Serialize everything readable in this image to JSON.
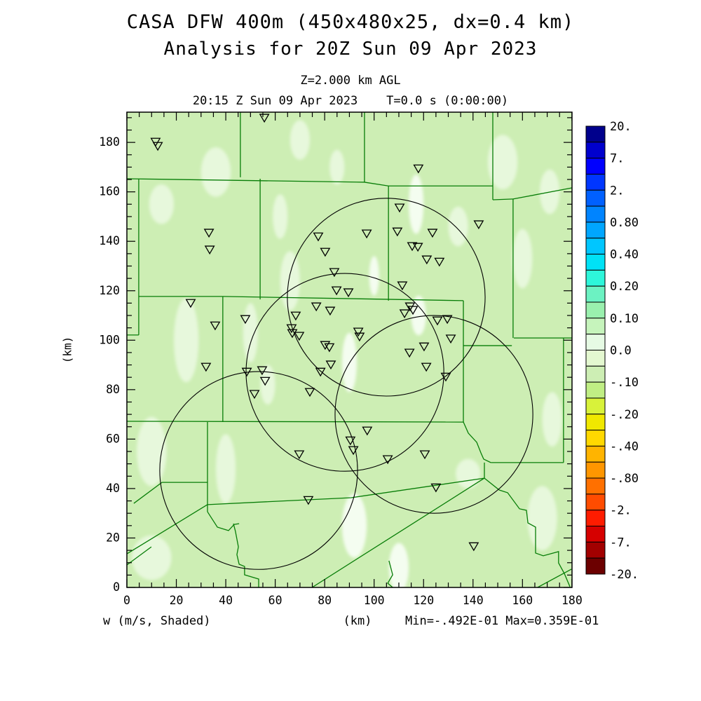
{
  "header": {
    "title_line1": "CASA DFW 400m (450x480x25, dx=0.4 km)",
    "title_line2": "Analysis for 20Z Sun 09 Apr 2023",
    "level_label": "Z=2.000 km AGL",
    "time_label": "20:15 Z Sun 09 Apr 2023    T=0.0 s (0:00:00)"
  },
  "footer": {
    "field_label": "w (m/s, Shaded)",
    "axis_unit": "(km)",
    "minmax_label": "Min=-.492E-01 Max=0.359E-01"
  },
  "chart_data": {
    "type": "map-contour",
    "title": "CASA DFW 400m (450x480x25, dx=0.4 km)",
    "subtitle": "Analysis for 20Z Sun 09 Apr 2023",
    "field_name": "w",
    "field_units": "m/s, Shaded",
    "level": "Z=2.000 km AGL",
    "valid_time": "20:15 Z Sun 09 Apr 2023",
    "forecast_time": "T=0.0 s (0:00:00)",
    "field_min": "-.492E-01",
    "field_max": "0.359E-01",
    "x_axis": {
      "label": "(km)",
      "min": 0,
      "max": 180,
      "major_tick": 20,
      "minor_tick": 5,
      "tick_labels": [
        "0",
        "20",
        "40",
        "60",
        "80",
        "100",
        "120",
        "140",
        "160",
        "180"
      ]
    },
    "y_axis": {
      "label": "(km)",
      "min": 0,
      "max": 192.2,
      "major_tick": 20,
      "minor_tick": 5,
      "tick_labels": [
        "0",
        "20",
        "40",
        "60",
        "80",
        "100",
        "120",
        "140",
        "160",
        "180"
      ]
    },
    "colorbar": {
      "boundary_labels": [
        {
          "label": "20.",
          "boundary": 0
        },
        {
          "label": "7.",
          "boundary": 2
        },
        {
          "label": "2.",
          "boundary": 4
        },
        {
          "label": "0.80",
          "boundary": 6
        },
        {
          "label": "0.40",
          "boundary": 8
        },
        {
          "label": "0.20",
          "boundary": 10
        },
        {
          "label": "0.10",
          "boundary": 12
        },
        {
          "label": "0.0",
          "boundary": 14
        },
        {
          "label": "-.10",
          "boundary": 16
        },
        {
          "label": "-.20",
          "boundary": 18
        },
        {
          "label": "-.40",
          "boundary": 20
        },
        {
          "label": "-.80",
          "boundary": 22
        },
        {
          "label": "-2.",
          "boundary": 24
        },
        {
          "label": "-7.",
          "boundary": 26
        },
        {
          "label": "-20.",
          "boundary": 28
        }
      ],
      "cell_colors": [
        "#00008c",
        "#0000cd",
        "#0000fe",
        "#0036ff",
        "#0060ff",
        "#0084ff",
        "#00a6ff",
        "#00c6ff",
        "#00e2f6",
        "#2ef6da",
        "#6cf2c2",
        "#9af0ae",
        "#c6f4bc",
        "#e6fae4",
        "#e4f8d0",
        "#cdeeb4",
        "#c0ee84",
        "#d8f23a",
        "#f0e800",
        "#ffd800",
        "#ffb400",
        "#ff9600",
        "#ff7000",
        "#ff4c00",
        "#fe1c00",
        "#d60000",
        "#a20000",
        "#6c0000"
      ]
    },
    "colors": {
      "map_background": "#cdeeb4",
      "pale_patch": "#e7f8dc",
      "bright_patch": "#f4fdf0",
      "county_line": "#077d07",
      "range_circle": "#000000",
      "marker": "#000000",
      "frame": "#000000"
    },
    "radar_circles_km": [
      {
        "x": 104.9,
        "y": 117.4,
        "r": 40
      },
      {
        "x": 88.2,
        "y": 87.0,
        "r": 40
      },
      {
        "x": 53.3,
        "y": 47.3,
        "r": 40
      },
      {
        "x": 124.2,
        "y": 70.0,
        "r": 40
      }
    ],
    "stations_km": [
      [
        11.6,
        180.3
      ],
      [
        12.5,
        178.6
      ],
      [
        55.6,
        190.0
      ],
      [
        33.2,
        143.5
      ],
      [
        33.5,
        136.7
      ],
      [
        77.4,
        142.0
      ],
      [
        80.2,
        135.8
      ],
      [
        83.9,
        127.6
      ],
      [
        84.8,
        120.2
      ],
      [
        89.6,
        119.4
      ],
      [
        76.6,
        113.7
      ],
      [
        82.2,
        112.0
      ],
      [
        68.3,
        110.0
      ],
      [
        66.6,
        104.9
      ],
      [
        66.9,
        102.9
      ],
      [
        69.7,
        101.8
      ],
      [
        80.2,
        98.1
      ],
      [
        81.9,
        97.2
      ],
      [
        25.8,
        115.1
      ],
      [
        47.9,
        108.6
      ],
      [
        35.7,
        106.0
      ],
      [
        117.9,
        169.5
      ],
      [
        110.3,
        153.7
      ],
      [
        142.3,
        146.9
      ],
      [
        97.0,
        143.2
      ],
      [
        109.4,
        144.0
      ],
      [
        123.6,
        143.5
      ],
      [
        115.4,
        138.1
      ],
      [
        117.7,
        137.8
      ],
      [
        121.3,
        132.7
      ],
      [
        126.4,
        131.8
      ],
      [
        111.4,
        122.2
      ],
      [
        114.5,
        113.7
      ],
      [
        115.7,
        112.3
      ],
      [
        112.3,
        110.9
      ],
      [
        125.6,
        108.0
      ],
      [
        129.6,
        108.6
      ],
      [
        131.0,
        100.7
      ],
      [
        120.2,
        97.5
      ],
      [
        93.6,
        103.5
      ],
      [
        94.1,
        101.5
      ],
      [
        32.0,
        89.3
      ],
      [
        48.5,
        87.3
      ],
      [
        54.7,
        87.9
      ],
      [
        55.9,
        83.6
      ],
      [
        51.6,
        78.3
      ],
      [
        74.0,
        79.1
      ],
      [
        82.5,
        90.2
      ],
      [
        78.3,
        87.3
      ],
      [
        69.7,
        53.9
      ],
      [
        73.4,
        35.4
      ],
      [
        90.4,
        59.5
      ],
      [
        91.6,
        55.6
      ],
      [
        97.2,
        63.5
      ],
      [
        105.5,
        51.9
      ],
      [
        120.5,
        53.9
      ],
      [
        125.0,
        40.5
      ],
      [
        140.3,
        16.7
      ],
      [
        114.3,
        95.0
      ],
      [
        121.1,
        89.3
      ],
      [
        129.0,
        85.3
      ]
    ],
    "county_lines_km": [
      [
        [
          45.9,
          192.2
        ],
        [
          45.9,
          165.9
        ]
      ],
      [
        [
          0,
          165.3
        ],
        [
          96.1,
          163.9
        ]
      ],
      [
        [
          96.1,
          192.2
        ],
        [
          96.1,
          163.9
        ]
      ],
      [
        [
          96.1,
          163.9
        ],
        [
          105.8,
          162.4
        ],
        [
          148.0,
          162.4
        ]
      ],
      [
        [
          148.0,
          192.2
        ],
        [
          148.0,
          156.8
        ]
      ],
      [
        [
          148.0,
          156.8
        ],
        [
          156.2,
          157.1
        ]
      ],
      [
        [
          156.2,
          157.1
        ],
        [
          180.0,
          161.6
        ]
      ],
      [
        [
          156.2,
          157.1
        ],
        [
          156.2,
          100.9
        ]
      ],
      [
        [
          4.8,
          165.3
        ],
        [
          4.8,
          102.1
        ]
      ],
      [
        [
          0,
          102.1
        ],
        [
          4.8,
          102.1
        ]
      ],
      [
        [
          53.9,
          165.3
        ],
        [
          53.9,
          116.5
        ]
      ],
      [
        [
          4.8,
          117.7
        ],
        [
          38.8,
          117.7
        ]
      ],
      [
        [
          38.8,
          117.7
        ],
        [
          136.1,
          116.0
        ]
      ],
      [
        [
          38.8,
          117.7
        ],
        [
          38.8,
          66.9
        ]
      ],
      [
        [
          105.8,
          162.4
        ],
        [
          105.8,
          116.0
        ]
      ],
      [
        [
          136.1,
          116.0
        ],
        [
          136.1,
          66.9
        ]
      ],
      [
        [
          136.1,
          97.8
        ],
        [
          155.7,
          97.8
        ]
      ],
      [
        [
          156.5,
          100.9
        ],
        [
          180.0,
          100.9
        ]
      ],
      [
        [
          176.6,
          100.9
        ],
        [
          176.6,
          50.5
        ]
      ],
      [
        [
          147.2,
          50.5
        ],
        [
          176.6,
          50.5
        ]
      ],
      [
        [
          0,
          67.2
        ],
        [
          136.1,
          66.9
        ]
      ],
      [
        [
          136.1,
          66.9
        ],
        [
          138.1,
          62.4
        ],
        [
          141.5,
          58.7
        ],
        [
          143.2,
          54.4
        ],
        [
          144.3,
          51.9
        ],
        [
          147.2,
          50.5
        ]
      ],
      [
        [
          144.6,
          50.5
        ],
        [
          144.6,
          44.2
        ]
      ],
      [
        [
          144.6,
          44.2
        ],
        [
          74.9,
          0
        ]
      ],
      [
        [
          32.6,
          33.5
        ],
        [
          90.7,
          36.3
        ],
        [
          144.6,
          44.2
        ]
      ],
      [
        [
          144.6,
          44.2
        ],
        [
          150.6,
          39.4
        ],
        [
          154.0,
          38.3
        ],
        [
          158.8,
          31.8
        ],
        [
          161.6,
          31.2
        ],
        [
          162.2,
          26.1
        ],
        [
          165.3,
          24.4
        ],
        [
          165.3,
          13.9
        ],
        [
          168.4,
          12.8
        ],
        [
          174.6,
          14.5
        ],
        [
          174.6,
          9.9
        ],
        [
          176.9,
          5.7
        ],
        [
          179.2,
          0.3
        ]
      ],
      [
        [
          32.6,
          66.9
        ],
        [
          32.6,
          30.6
        ]
      ],
      [
        [
          32.6,
          30.6
        ],
        [
          36.6,
          24.4
        ],
        [
          41.1,
          23.0
        ],
        [
          43.4,
          25.5
        ],
        [
          45.4,
          25.8
        ]
      ],
      [
        [
          43.1,
          25.8
        ],
        [
          43.9,
          22.7
        ],
        [
          45.1,
          16.4
        ],
        [
          44.5,
          13.3
        ],
        [
          45.4,
          9.4
        ],
        [
          47.6,
          8.5
        ],
        [
          47.6,
          5.1
        ],
        [
          53.3,
          3.4
        ],
        [
          53.3,
          0
        ]
      ],
      [
        [
          14.2,
          42.5
        ],
        [
          32.6,
          42.5
        ]
      ],
      [
        [
          14.2,
          42.5
        ],
        [
          2.8,
          34.0
        ]
      ],
      [
        [
          32.6,
          33.5
        ],
        [
          0,
          13.6
        ]
      ],
      [
        [
          9.9,
          16.4
        ],
        [
          0,
          9.1
        ]
      ],
      [
        [
          106.0,
          10.8
        ],
        [
          107.5,
          5.1
        ],
        [
          105.5,
          1.7
        ],
        [
          107.5,
          0
        ]
      ],
      [
        [
          166.1,
          0
        ],
        [
          179.8,
          7.4
        ]
      ]
    ],
    "pale_patches_km": [
      [
        36,
        168,
        6,
        10,
        0
      ],
      [
        70,
        181,
        4,
        8,
        0
      ],
      [
        14,
        155,
        5,
        8,
        0
      ],
      [
        24,
        100,
        5,
        17,
        0
      ],
      [
        50,
        103,
        3,
        12,
        0
      ],
      [
        66,
        124,
        4,
        12,
        0
      ],
      [
        90,
        91,
        3,
        12,
        1
      ],
      [
        117,
        155,
        3,
        12,
        1
      ],
      [
        118,
        110,
        3,
        8,
        1
      ],
      [
        134,
        146,
        4,
        8,
        0
      ],
      [
        160,
        133,
        4,
        12,
        0
      ],
      [
        171,
        160,
        4,
        9,
        0
      ],
      [
        10,
        55,
        6,
        14,
        0
      ],
      [
        40,
        48,
        4,
        14,
        0
      ],
      [
        92,
        25,
        5,
        13,
        1
      ],
      [
        110,
        8,
        4,
        10,
        1
      ],
      [
        138,
        46,
        5,
        6,
        0
      ],
      [
        168,
        28,
        6,
        13,
        0
      ],
      [
        172,
        68,
        4,
        11,
        0
      ],
      [
        152,
        172,
        6,
        11,
        0
      ],
      [
        10,
        12,
        8,
        9,
        0
      ],
      [
        62,
        150,
        3,
        9,
        0
      ],
      [
        85,
        170,
        3,
        7,
        0
      ],
      [
        57,
        82,
        3,
        8,
        0
      ],
      [
        100,
        126,
        2,
        8,
        1
      ]
    ]
  }
}
